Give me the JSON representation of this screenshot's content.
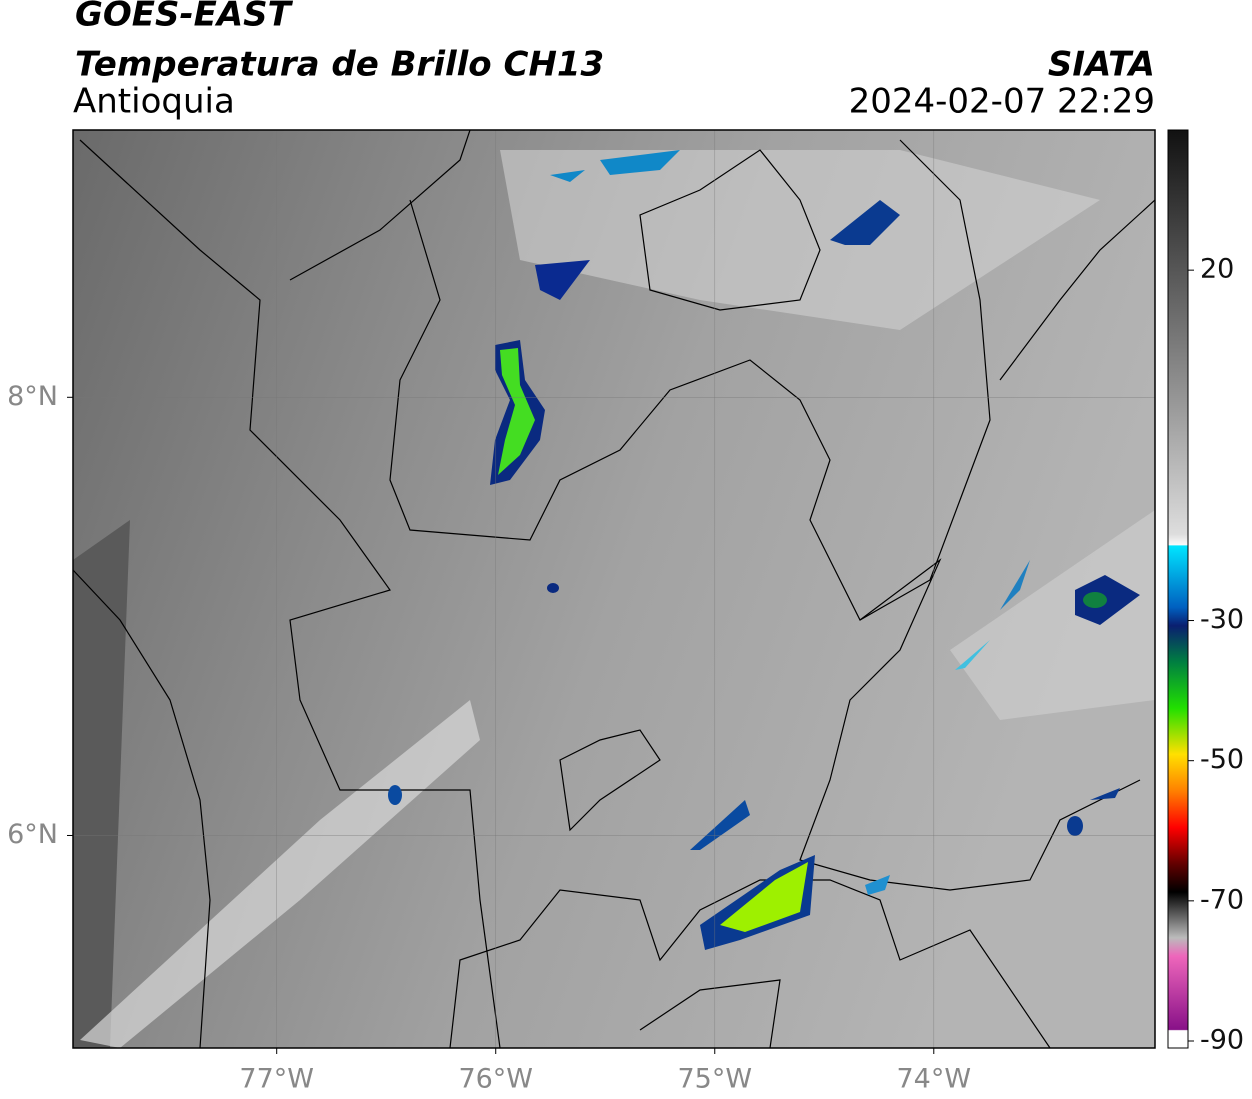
{
  "header": {
    "title": "GOES-EAST",
    "subtitle": "Temperatura de Brillo CH13",
    "region": "Antioquia",
    "source": "SIATA",
    "timestamp": "2024-02-07 22:29"
  },
  "map": {
    "xlim": [
      -77.93,
      -72.99
    ],
    "ylim": [
      5.03,
      9.22
    ],
    "xticks": [
      {
        "value": -77,
        "label": "77°W"
      },
      {
        "value": -76,
        "label": "76°W"
      },
      {
        "value": -75,
        "label": "75°W"
      },
      {
        "value": -74,
        "label": "74°W"
      }
    ],
    "yticks": [
      {
        "value": 8,
        "label": "8°N"
      },
      {
        "value": 6,
        "label": "6°N"
      }
    ],
    "grid": true
  },
  "colorbar": {
    "lim": [
      -91,
      40
    ],
    "ticks": [
      20,
      -30,
      -50,
      -70,
      -90
    ]
  }
}
